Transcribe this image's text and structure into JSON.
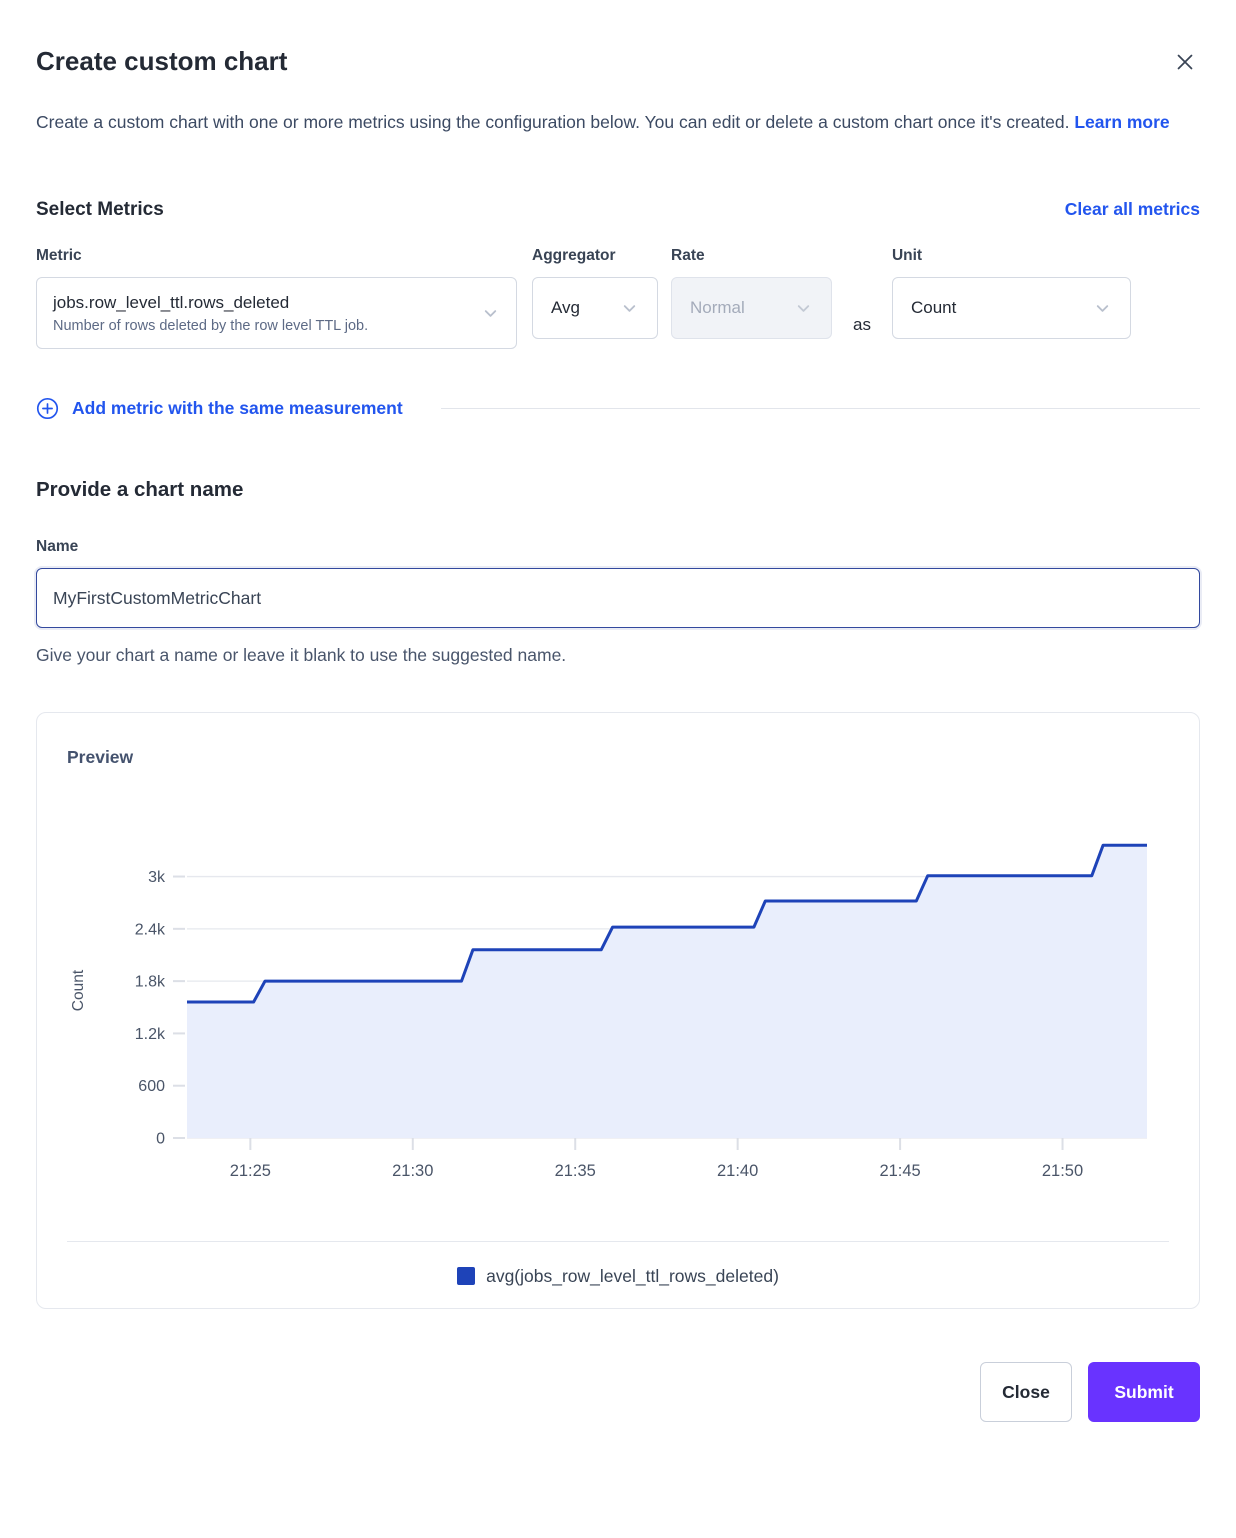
{
  "header": {
    "title": "Create custom chart",
    "description": "Create a custom chart with one or more metrics using the configuration below. You can edit or delete a custom chart once it's created.",
    "learn_more_label": "Learn more"
  },
  "metrics": {
    "section_title": "Select Metrics",
    "clear_all_label": "Clear all metrics",
    "metric_label": "Metric",
    "metric_value": "jobs.row_level_ttl.rows_deleted",
    "metric_description": "Number of rows deleted by the row level TTL job.",
    "aggregator_label": "Aggregator",
    "aggregator_value": "Avg",
    "rate_label": "Rate",
    "rate_value": "Normal",
    "rate_disabled": true,
    "as_label": "as",
    "unit_label": "Unit",
    "unit_value": "Count",
    "add_metric_label": "Add metric with the same measurement"
  },
  "chart_name": {
    "section_title": "Provide a chart name",
    "name_label": "Name",
    "value": "MyFirstCustomMetricChart",
    "helper": "Give your chart a name or leave it blank to use the suggested name."
  },
  "preview": {
    "title": "Preview",
    "legend": "avg(jobs_row_level_ttl_rows_deleted)"
  },
  "footer": {
    "close_label": "Close",
    "submit_label": "Submit"
  },
  "colors": {
    "link_blue": "#2255ee",
    "series_line": "#1e43b8",
    "series_fill": "#e9eefc",
    "grid_line": "#e6e8ee",
    "tick_mark": "#dcdfe6",
    "axis_text": "#4a5568",
    "submit_purple": "#6933ff"
  },
  "chart_data": {
    "type": "area",
    "title": "Preview",
    "xlabel": "",
    "ylabel": "Count",
    "x_unit": "minutes after 21:00",
    "xlim": [
      23.05,
      52.6
    ],
    "ylim": [
      0,
      3385
    ],
    "grid": true,
    "legend_position": "bottom",
    "x_ticks": [
      {
        "v": 25,
        "label": "21:25"
      },
      {
        "v": 30,
        "label": "21:30"
      },
      {
        "v": 35,
        "label": "21:35"
      },
      {
        "v": 40,
        "label": "21:40"
      },
      {
        "v": 45,
        "label": "21:45"
      },
      {
        "v": 50,
        "label": "21:50"
      }
    ],
    "y_ticks": [
      {
        "v": 0,
        "label": "0"
      },
      {
        "v": 600,
        "label": "600"
      },
      {
        "v": 1200,
        "label": "1.2k"
      },
      {
        "v": 1800,
        "label": "1.8k"
      },
      {
        "v": 2400,
        "label": "2.4k"
      },
      {
        "v": 3000,
        "label": "3k"
      }
    ],
    "series": [
      {
        "name": "avg(jobs_row_level_ttl_rows_deleted)",
        "color": "#1e43b8",
        "fill": "#e9eefc",
        "points": [
          [
            23.05,
            1560
          ],
          [
            25.1,
            1560
          ],
          [
            25.45,
            1800
          ],
          [
            31.5,
            1800
          ],
          [
            31.85,
            2160
          ],
          [
            35.8,
            2160
          ],
          [
            36.15,
            2420
          ],
          [
            40.5,
            2420
          ],
          [
            40.85,
            2720
          ],
          [
            45.5,
            2720
          ],
          [
            45.85,
            3010
          ],
          [
            50.9,
            3010
          ],
          [
            51.25,
            3360
          ],
          [
            52.6,
            3360
          ]
        ]
      }
    ]
  }
}
